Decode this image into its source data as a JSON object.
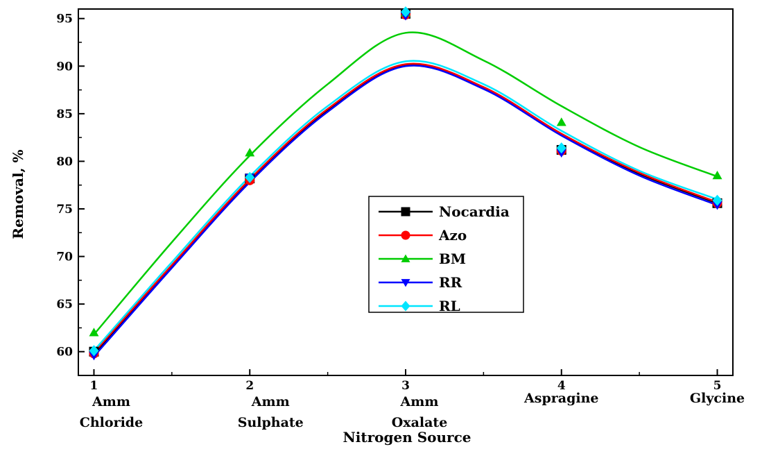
{
  "chart_data": {
    "type": "line",
    "title": "",
    "xlabel": "Nitrogen Source",
    "ylabel": "Removal, %",
    "x": [
      1,
      2,
      3,
      4,
      5
    ],
    "x_tick_labels": [
      "1",
      "2",
      "3",
      "4",
      "5"
    ],
    "category_labels": [
      [
        "Amm",
        "Chloride"
      ],
      [
        "Amm",
        "Sulphate"
      ],
      [
        "Amm",
        "Oxalate"
      ],
      [
        "Aspragine"
      ],
      [
        "Glycine"
      ]
    ],
    "xlim": [
      0.9,
      5.1
    ],
    "ylim": [
      57.5,
      96
    ],
    "y_ticks": [
      60,
      65,
      70,
      75,
      80,
      85,
      90,
      95
    ],
    "grid": false,
    "legend_position": "center",
    "series": [
      {
        "name": "Nocardia",
        "color": "#000000",
        "marker": "square",
        "points": [
          60,
          78.2,
          95.5,
          81.2,
          75.6
        ],
        "smooth_curve": [
          [
            1,
            59.7
          ],
          [
            1.5,
            68.9
          ],
          [
            2,
            77.9
          ],
          [
            2.5,
            85.3
          ],
          [
            3,
            90.1
          ],
          [
            3.5,
            87.7
          ],
          [
            4,
            82.8
          ],
          [
            4.5,
            78.7
          ],
          [
            5,
            75.6
          ]
        ]
      },
      {
        "name": "Azo",
        "color": "#ff0000",
        "marker": "circle",
        "points": [
          59.8,
          78,
          95.4,
          81.1,
          75.6
        ],
        "smooth_curve": [
          [
            1,
            59.9
          ],
          [
            1.5,
            69.1
          ],
          [
            2,
            78.1
          ],
          [
            2.5,
            85.5
          ],
          [
            3,
            90.2
          ],
          [
            3.5,
            87.8
          ],
          [
            4,
            82.9
          ],
          [
            4.5,
            78.8
          ],
          [
            5,
            75.7
          ]
        ]
      },
      {
        "name": "BM",
        "color": "#00cc00",
        "marker": "triangle-up",
        "points": [
          62,
          80.9,
          95.6,
          84.1,
          78.5
        ],
        "smooth_curve": [
          [
            1,
            61.8
          ],
          [
            1.5,
            71.5
          ],
          [
            2,
            80.6
          ],
          [
            2.5,
            88.1
          ],
          [
            3,
            93.5
          ],
          [
            3.5,
            90.6
          ],
          [
            4,
            85.8
          ],
          [
            4.5,
            81.5
          ],
          [
            5,
            78.4
          ]
        ]
      },
      {
        "name": "RR",
        "color": "#0000ff",
        "marker": "triangle-down",
        "points": [
          59.6,
          78.3,
          95.3,
          80.9,
          75.4
        ],
        "smooth_curve": [
          [
            1,
            59.5
          ],
          [
            1.5,
            68.8
          ],
          [
            2,
            77.8
          ],
          [
            2.5,
            85.2
          ],
          [
            3,
            90
          ],
          [
            3.5,
            87.6
          ],
          [
            4,
            82.7
          ],
          [
            4.5,
            78.5
          ],
          [
            5,
            75.4
          ]
        ]
      },
      {
        "name": "RL",
        "color": "#00e5ff",
        "marker": "diamond",
        "points": [
          60.1,
          78.3,
          95.7,
          81.4,
          75.9
        ],
        "smooth_curve": [
          [
            1,
            60.1
          ],
          [
            1.5,
            69.4
          ],
          [
            2,
            78.4
          ],
          [
            2.5,
            85.8
          ],
          [
            3,
            90.5
          ],
          [
            3.5,
            88.1
          ],
          [
            4,
            83.2
          ],
          [
            4.5,
            79
          ],
          [
            5,
            76
          ]
        ]
      }
    ]
  }
}
